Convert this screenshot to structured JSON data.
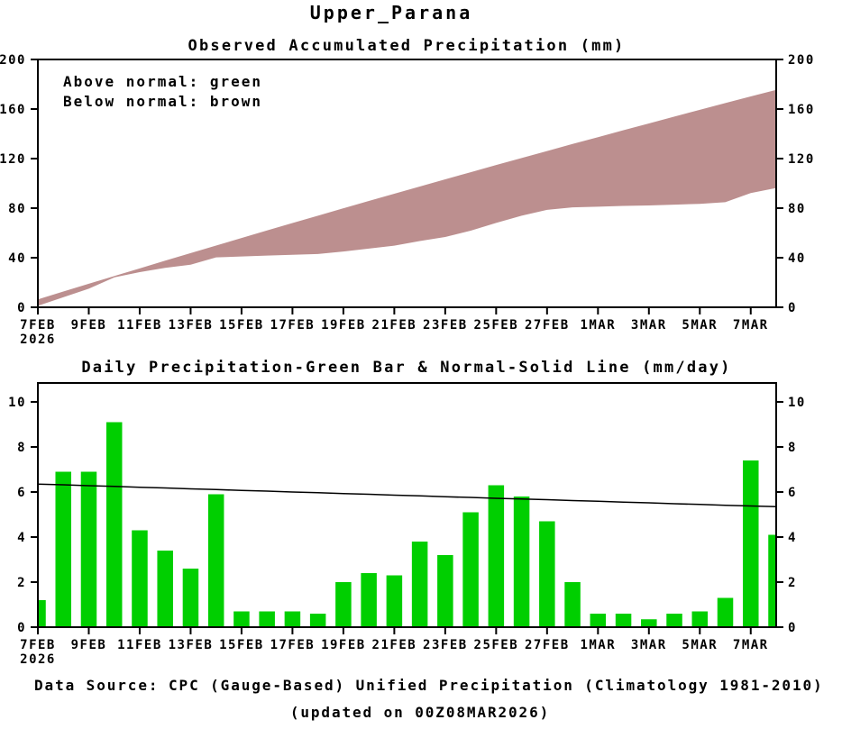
{
  "title": "Upper_Parana",
  "colors": {
    "bar_green": "#00CF00",
    "below_normal_brown": "#BC8F8F",
    "source_red": "#FF4040",
    "axis_black": "#000000",
    "normal_line_black": "#000000"
  },
  "footer": {
    "source_label": "Data Source:",
    "source_text": "CPC (Gauge-Based) Unified Precipitation (Climatology 1981-2010)",
    "updated": "(updated on 00Z08MAR2026)"
  },
  "chart_data": [
    {
      "type": "area",
      "title": "Observed Accumulated Precipitation (mm)",
      "legend": [
        "Above normal: green",
        "Below normal: brown"
      ],
      "legend_position": "top-left",
      "xlabel": "",
      "ylabel": "",
      "ylim": [
        0,
        200
      ],
      "yticks": [
        0,
        40,
        80,
        120,
        160,
        200
      ],
      "grid": false,
      "x_year": "2026",
      "x_tick_labels": [
        "7FEB",
        "9FEB",
        "11FEB",
        "13FEB",
        "15FEB",
        "17FEB",
        "19FEB",
        "21FEB",
        "23FEB",
        "25FEB",
        "27FEB",
        "1MAR",
        "3MAR",
        "5MAR",
        "7MAR"
      ],
      "x": [
        "7FEB",
        "8FEB",
        "9FEB",
        "10FEB",
        "11FEB",
        "12FEB",
        "13FEB",
        "14FEB",
        "15FEB",
        "16FEB",
        "17FEB",
        "18FEB",
        "19FEB",
        "20FEB",
        "21FEB",
        "22FEB",
        "23FEB",
        "24FEB",
        "25FEB",
        "26FEB",
        "27FEB",
        "28FEB",
        "1MAR",
        "2MAR",
        "3MAR",
        "4MAR",
        "5MAR",
        "6MAR",
        "7MAR",
        "8MAR"
      ],
      "series": [
        {
          "name": "observed_accumulated_mm",
          "values": [
            1.2,
            8.1,
            15.0,
            24.1,
            28.4,
            31.8,
            34.4,
            40.3,
            41.0,
            41.7,
            42.4,
            43.0,
            45.0,
            47.4,
            49.7,
            53.5,
            56.7,
            61.8,
            68.1,
            73.9,
            78.6,
            80.6,
            81.2,
            81.8,
            82.2,
            82.8,
            83.5,
            84.8,
            92.2,
            96.3
          ]
        },
        {
          "name": "normal_accumulated_mm",
          "values": [
            6.4,
            12.7,
            19.0,
            25.2,
            31.4,
            37.6,
            43.7,
            49.8,
            55.9,
            62.0,
            68.0,
            73.9,
            79.9,
            85.8,
            91.6,
            97.5,
            103.3,
            109.0,
            114.8,
            120.5,
            126.1,
            131.8,
            137.3,
            142.9,
            148.4,
            153.9,
            159.4,
            164.8,
            170.2,
            175.5
          ]
        }
      ],
      "band_meaning": "observed below normal, filled brown between observed and normal curves"
    },
    {
      "type": "bar",
      "title": "Daily Precipitation-Green Bar & Normal-Solid Line (mm/day)",
      "xlabel": "",
      "ylabel": "",
      "ylim": [
        0,
        10.84
      ],
      "yticks": [
        0,
        2,
        4,
        6,
        8,
        10
      ],
      "grid": false,
      "x_year": "2026",
      "x_tick_labels": [
        "7FEB",
        "9FEB",
        "11FEB",
        "13FEB",
        "15FEB",
        "17FEB",
        "19FEB",
        "21FEB",
        "23FEB",
        "25FEB",
        "27FEB",
        "1MAR",
        "3MAR",
        "5MAR",
        "7MAR"
      ],
      "x": [
        "7FEB",
        "8FEB",
        "9FEB",
        "10FEB",
        "11FEB",
        "12FEB",
        "13FEB",
        "14FEB",
        "15FEB",
        "16FEB",
        "17FEB",
        "18FEB",
        "19FEB",
        "20FEB",
        "21FEB",
        "22FEB",
        "23FEB",
        "24FEB",
        "25FEB",
        "26FEB",
        "27FEB",
        "28FEB",
        "1MAR",
        "2MAR",
        "3MAR",
        "4MAR",
        "5MAR",
        "6MAR",
        "7MAR",
        "8MAR"
      ],
      "series": [
        {
          "name": "daily_precipitation_mm_per_day",
          "values": [
            1.2,
            6.9,
            6.9,
            9.1,
            4.3,
            3.4,
            2.6,
            5.9,
            0.7,
            0.7,
            0.7,
            0.6,
            2.0,
            2.4,
            2.3,
            3.8,
            3.2,
            5.1,
            6.3,
            5.8,
            4.7,
            2.0,
            0.6,
            0.6,
            0.35,
            0.6,
            0.7,
            1.3,
            7.4,
            4.1
          ]
        },
        {
          "name": "normal_mm_per_day",
          "values": [
            6.35,
            6.32,
            6.28,
            6.25,
            6.21,
            6.18,
            6.14,
            6.11,
            6.07,
            6.04,
            6.0,
            5.97,
            5.93,
            5.9,
            5.86,
            5.83,
            5.79,
            5.76,
            5.72,
            5.69,
            5.66,
            5.62,
            5.59,
            5.55,
            5.52,
            5.48,
            5.45,
            5.41,
            5.38,
            5.35
          ]
        }
      ]
    }
  ]
}
